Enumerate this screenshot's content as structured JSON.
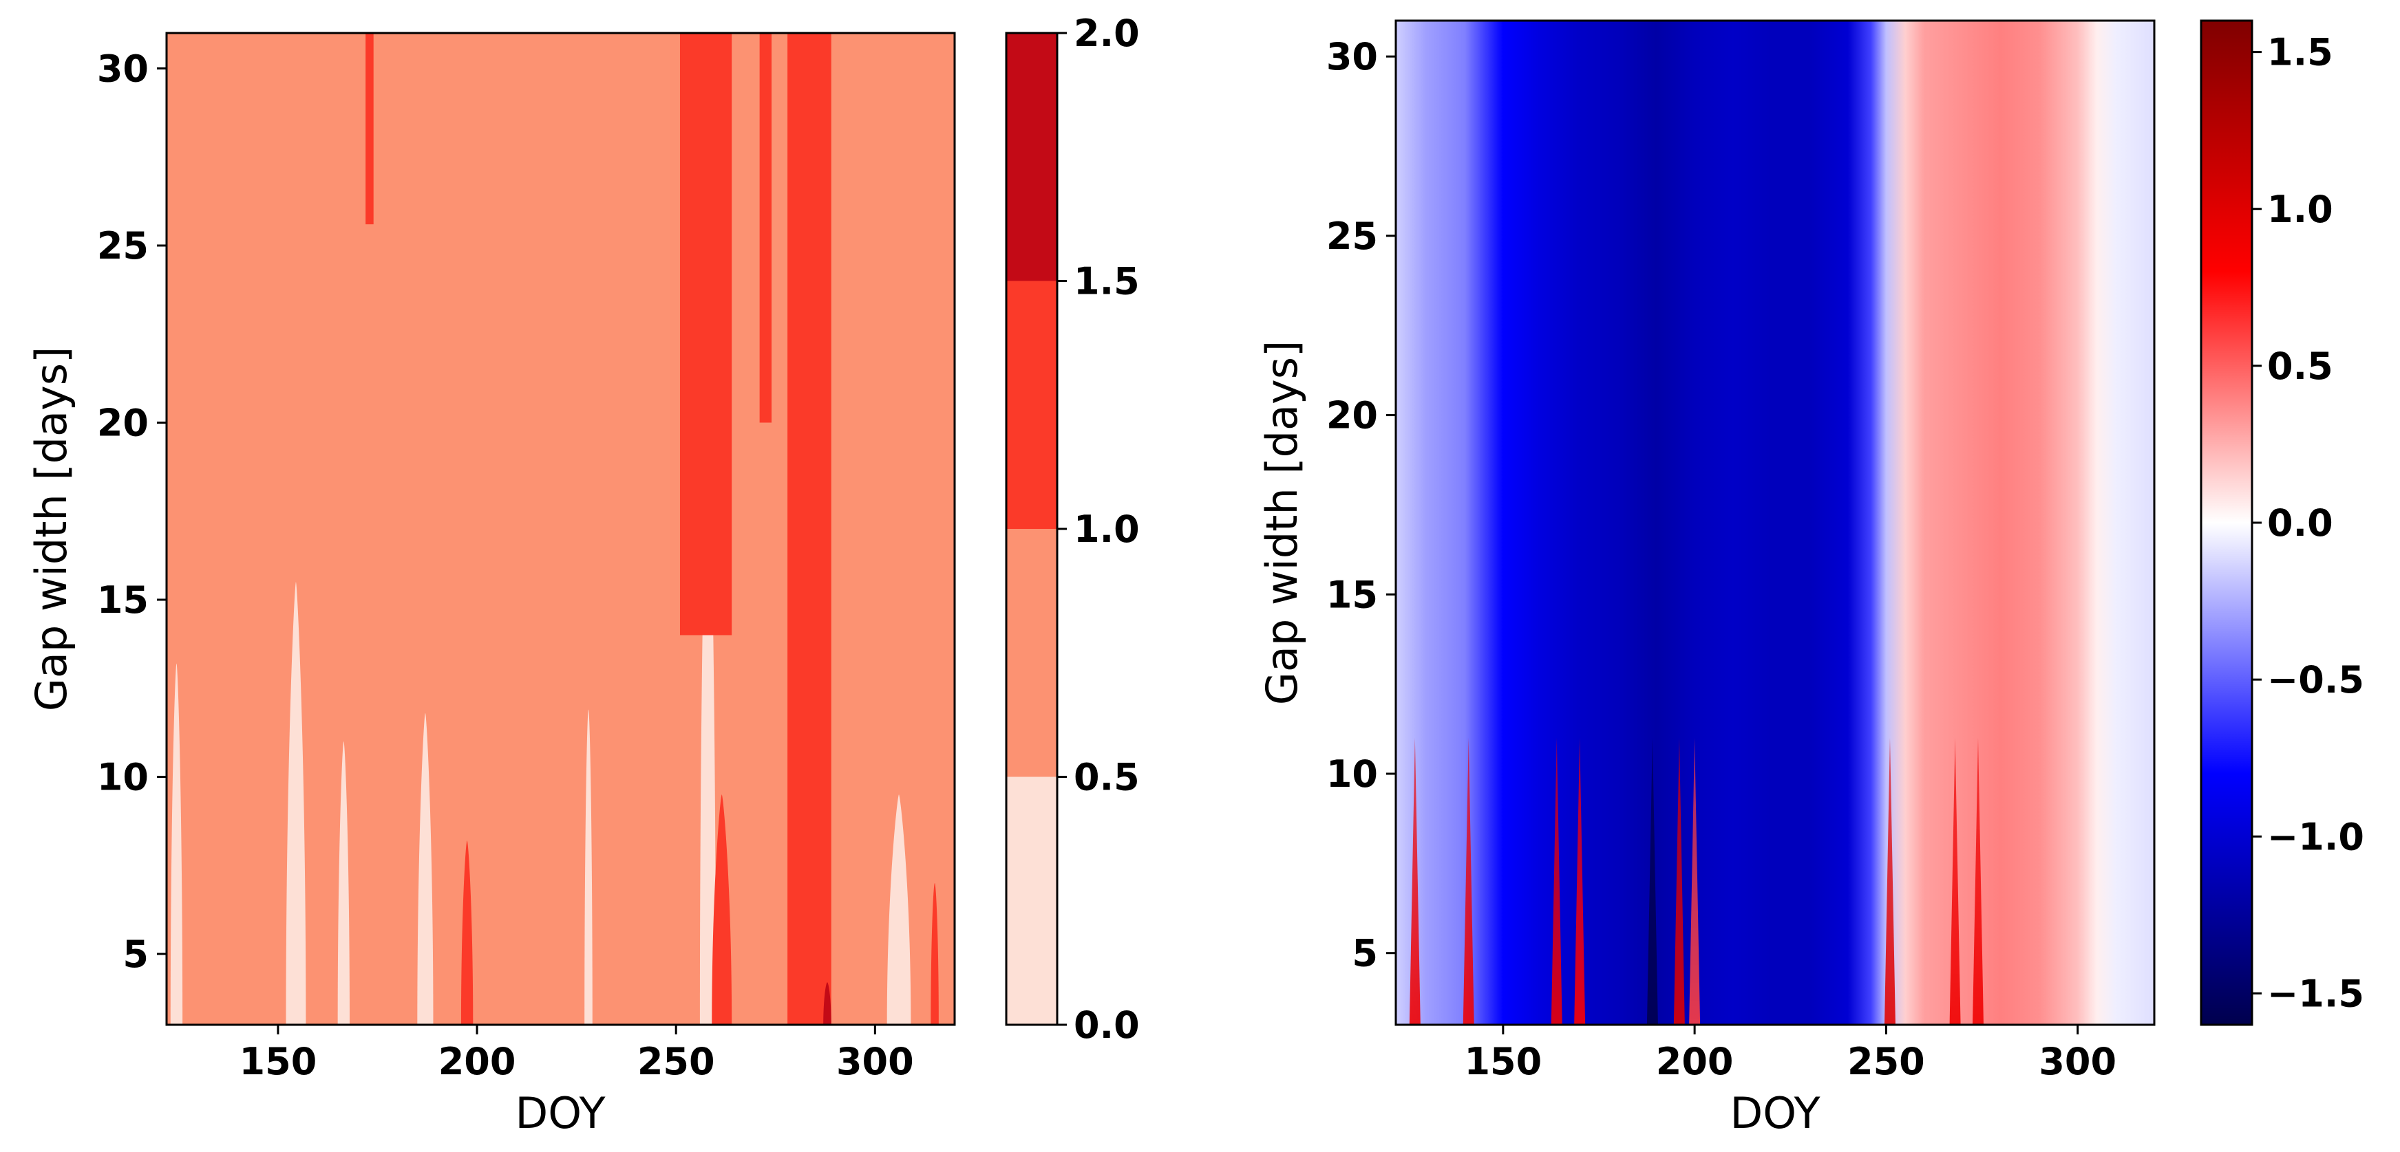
{
  "chart_data": [
    {
      "type": "heatmap",
      "subtype": "filled-contour",
      "xlabel": "DOY",
      "ylabel": "Gap width [days]",
      "xlim": [
        122,
        320
      ],
      "ylim": [
        3,
        31
      ],
      "xticks": [
        150,
        200,
        250,
        300
      ],
      "yticks": [
        5,
        10,
        15,
        20,
        25,
        30
      ],
      "colorbar": {
        "ticks": [
          "0.0",
          "0.5",
          "1.0",
          "1.5",
          "2.0"
        ],
        "levels": [
          0.0,
          0.5,
          1.0,
          1.5,
          2.0
        ],
        "colors": [
          "#fde0d6",
          "#fc9272",
          "#fb3a29",
          "#c30a16"
        ],
        "cmap": "Reds"
      },
      "background_level": [
        0.5,
        1.0
      ],
      "regions_level_0_to_0.5": [
        {
          "x": [
            123,
            126
          ],
          "y": [
            3,
            13.2
          ]
        },
        {
          "x": [
            152,
            157
          ],
          "y": [
            3,
            15.5
          ]
        },
        {
          "x": [
            165,
            168
          ],
          "y": [
            3,
            11.0
          ]
        },
        {
          "x": [
            185,
            189
          ],
          "y": [
            3,
            11.8
          ]
        },
        {
          "x": [
            227,
            229
          ],
          "y": [
            3,
            11.9
          ]
        },
        {
          "x": [
            256,
            260
          ],
          "y": [
            3,
            20.5
          ]
        },
        {
          "x": [
            303,
            309
          ],
          "y": [
            3,
            9.5
          ]
        }
      ],
      "regions_level_1.0_to_1.5": [
        {
          "x": [
            172,
            174
          ],
          "y": [
            25.6,
            31
          ]
        },
        {
          "x": [
            196,
            199
          ],
          "y": [
            3,
            8.2
          ]
        },
        {
          "x": [
            251,
            264
          ],
          "y": [
            14.0,
            31
          ]
        },
        {
          "x": [
            259,
            264
          ],
          "y": [
            3,
            9.5
          ]
        },
        {
          "x": [
            271,
            274
          ],
          "y": [
            20.0,
            31
          ]
        },
        {
          "x": [
            278,
            289
          ],
          "y": [
            3,
            31
          ]
        },
        {
          "x": [
            314,
            316
          ],
          "y": [
            3,
            7.0
          ]
        }
      ],
      "regions_level_1.5_to_2.0": [
        {
          "x": [
            287,
            289
          ],
          "y": [
            3,
            4.2
          ]
        }
      ]
    },
    {
      "type": "heatmap",
      "subtype": "image",
      "xlabel": "DOY",
      "ylabel": "Gap width [days]",
      "xlim": [
        122,
        320
      ],
      "ylim": [
        3,
        31
      ],
      "xticks": [
        150,
        200,
        250,
        300
      ],
      "yticks": [
        5,
        10,
        15,
        20,
        25,
        30
      ],
      "colorbar": {
        "ticks": [
          "−1.5",
          "−1.0",
          "−0.5",
          "0.0",
          "0.5",
          "1.0",
          "1.5"
        ],
        "range": [
          -1.6,
          1.6
        ],
        "cmap": "seismic"
      },
      "value_profile_by_doy": {
        "x": [
          122,
          130,
          140,
          145,
          150,
          160,
          170,
          180,
          190,
          200,
          210,
          220,
          230,
          240,
          246,
          250,
          255,
          260,
          270,
          280,
          290,
          300,
          305,
          310,
          320
        ],
        "values": [
          -0.15,
          -0.3,
          -0.4,
          -0.6,
          -0.8,
          -0.95,
          -1.05,
          -1.1,
          -1.2,
          -1.1,
          -1.05,
          -1.1,
          -1.1,
          -1.0,
          -0.6,
          -0.2,
          0.15,
          0.3,
          0.35,
          0.4,
          0.35,
          0.2,
          0.05,
          -0.05,
          -0.1
        ]
      },
      "small_gap_spikes": [
        {
          "x": 127,
          "value": 0.9
        },
        {
          "x": 141,
          "value": 0.9
        },
        {
          "x": 164,
          "value": 0.9
        },
        {
          "x": 170,
          "value": 0.8
        },
        {
          "x": 189,
          "value": -1.6
        },
        {
          "x": 196,
          "value": 1.0
        },
        {
          "x": 200,
          "value": 0.6
        },
        {
          "x": 251,
          "value": 1.0
        },
        {
          "x": 268,
          "value": 0.9
        },
        {
          "x": 274,
          "value": 0.9
        }
      ]
    }
  ]
}
